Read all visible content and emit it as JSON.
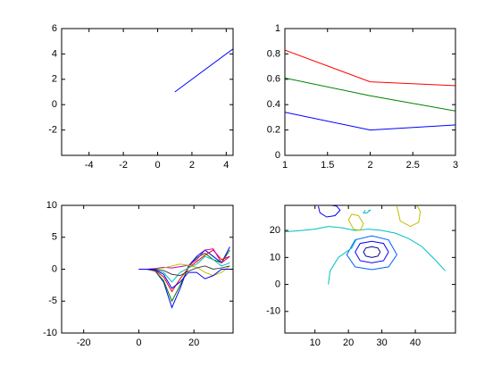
{
  "chart_data": [
    {
      "type": "line",
      "xlim": [
        -5.6,
        4.4
      ],
      "ylim": [
        -4,
        6
      ],
      "xticks": [
        -4,
        -2,
        0,
        2,
        4
      ],
      "yticks": [
        -2,
        0,
        2,
        4,
        6
      ],
      "x": [
        1,
        4.4
      ],
      "series": [
        {
          "color": "#0000ff",
          "values": [
            1,
            4.4
          ]
        }
      ]
    },
    {
      "type": "line",
      "xlim": [
        1,
        3
      ],
      "ylim": [
        0,
        1
      ],
      "xticks": [
        1,
        1.5,
        2,
        2.5,
        3
      ],
      "yticks": [
        0,
        0.2,
        0.4,
        0.6,
        0.8,
        1
      ],
      "x": [
        1,
        2,
        3
      ],
      "series": [
        {
          "color": "#ff0000",
          "values": [
            0.83,
            0.58,
            0.55
          ]
        },
        {
          "color": "#008000",
          "values": [
            0.61,
            0.47,
            0.35
          ]
        },
        {
          "color": "#0000ff",
          "values": [
            0.34,
            0.2,
            0.24
          ]
        }
      ]
    },
    {
      "type": "line",
      "xlim": [
        -28,
        34.2
      ],
      "ylim": [
        -10,
        10
      ],
      "xticks": [
        -20,
        0,
        20
      ],
      "yticks": [
        -10,
        -5,
        0,
        5,
        10
      ],
      "x": [
        0,
        3,
        6,
        9,
        12,
        15,
        18,
        21,
        24,
        27,
        30,
        33
      ],
      "series": [
        {
          "color": "#0000ff",
          "values": [
            0,
            0,
            -0.3,
            -2,
            -6,
            -3,
            0.5,
            2,
            3,
            2,
            1,
            3.5
          ]
        },
        {
          "color": "#008000",
          "values": [
            0,
            0,
            -0.3,
            -1.8,
            -5,
            -2.5,
            0.3,
            1.8,
            2.5,
            1.5,
            1,
            3
          ]
        },
        {
          "color": "#ff0000",
          "values": [
            0,
            0,
            -0.2,
            -1.2,
            -3.5,
            -1.5,
            0.2,
            1.2,
            2.2,
            3,
            1.5,
            2
          ]
        },
        {
          "color": "#00bfbf",
          "values": [
            0,
            0,
            -0.1,
            -0.5,
            -2,
            -0.5,
            0.2,
            0.8,
            2,
            1.5,
            0.5,
            1
          ]
        },
        {
          "color": "#bf00bf",
          "values": [
            0,
            0,
            0.1,
            0.3,
            0.2,
            0.4,
            0.6,
            1.5,
            3,
            3.2,
            1,
            2
          ]
        },
        {
          "color": "#bfbf00",
          "values": [
            0,
            0,
            0,
            0.2,
            0.5,
            0.8,
            0.6,
            0.3,
            -0.5,
            -1,
            -0.5,
            0.5
          ]
        },
        {
          "color": "#404040",
          "values": [
            0,
            0,
            0,
            -0.2,
            -0.8,
            -1,
            -0.3,
            0.2,
            0.5,
            0,
            0.2,
            0.5
          ]
        },
        {
          "color": "#0000ff",
          "values": [
            0,
            0,
            -0.1,
            -0.8,
            -3,
            -2,
            -0.5,
            -0.5,
            -1.5,
            -1,
            0,
            0
          ]
        }
      ]
    },
    {
      "type": "contour",
      "xlim": [
        1,
        52
      ],
      "ylim": [
        -18,
        29.3
      ],
      "xticks": [
        10,
        20,
        30,
        40
      ],
      "yticks": [
        -10,
        0,
        10,
        20
      ],
      "series": [
        {
          "color": "#00008f",
          "x": [
            29.5,
            28.8,
            27,
            25.2,
            24.5,
            25.2,
            27,
            28.8,
            29.5
          ],
          "y": [
            12,
            13.5,
            14,
            13.5,
            12,
            10.5,
            10,
            10.5,
            12
          ]
        },
        {
          "color": "#0000ff",
          "x": [
            32,
            30.5,
            27,
            23.5,
            22,
            23.5,
            27,
            30.5,
            32
          ],
          "y": [
            12,
            15.2,
            16,
            15.2,
            12,
            8.8,
            8,
            8.8,
            12
          ]
        },
        {
          "color": "#0060ff",
          "x": [
            34.5,
            32,
            27,
            22,
            19.5,
            22,
            27,
            32,
            34.5
          ],
          "y": [
            11,
            16.5,
            18,
            16.5,
            11,
            6.5,
            5.5,
            6.5,
            11
          ]
        },
        {
          "color": "#0000ff",
          "x": [
            11,
            11.5,
            13.5,
            16,
            17.5,
            16.5,
            15
          ],
          "y": [
            29,
            26.5,
            25,
            25.5,
            27.5,
            29,
            29.3
          ]
        },
        {
          "color": "#00bfbf",
          "x": [
            1,
            6,
            10,
            14,
            18,
            22,
            26,
            30,
            34,
            38,
            42,
            46,
            49
          ],
          "y": [
            19.5,
            20,
            20.5,
            21.5,
            21,
            20,
            20.5,
            20,
            19,
            17,
            14,
            9,
            5
          ]
        },
        {
          "color": "#00bfbf",
          "x": [
            14,
            14.5,
            17,
            21,
            22.5
          ],
          "y": [
            0,
            5,
            10,
            13.5,
            17
          ]
        },
        {
          "color": "#00bfbf",
          "x": [
            25,
            24.5,
            25.5,
            26.5,
            26
          ],
          "y": [
            27.5,
            26.5,
            26.5,
            27.5,
            27.5
          ]
        },
        {
          "color": "#bfbf00",
          "x": [
            20,
            21.5,
            23.5,
            24.5,
            23,
            21,
            20
          ],
          "y": [
            24,
            20.5,
            20,
            22.5,
            25.5,
            26,
            24
          ]
        },
        {
          "color": "#bfbf00",
          "x": [
            34.5,
            35.5,
            38.5,
            41,
            41.5,
            40.5
          ],
          "y": [
            29,
            23.5,
            21.5,
            23,
            27,
            29.3
          ]
        }
      ]
    }
  ]
}
